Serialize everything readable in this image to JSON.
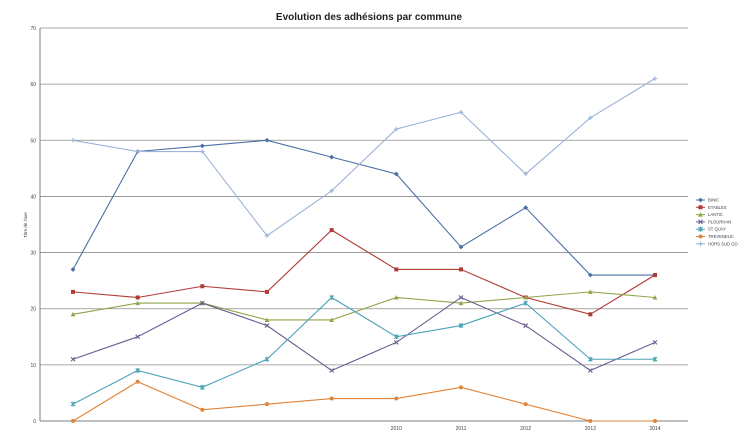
{
  "chart_data": {
    "type": "line",
    "title": "Evolution des adhésions par commune",
    "xlabel": "",
    "ylabel": "Titre de l'axe",
    "ylim": [
      0,
      70
    ],
    "yticks": [
      "0",
      "10",
      "20",
      "30",
      "40",
      "50",
      "60",
      "70"
    ],
    "categories": [
      "",
      "",
      "",
      "",
      "",
      "2010",
      "2011",
      "2012",
      "2013",
      "2014"
    ],
    "grid": true,
    "legend_position": "right",
    "series": [
      {
        "name": "BINIC",
        "color": "#4a6fa5",
        "marker": "diamond",
        "values": [
          27,
          48,
          49,
          50,
          47,
          44,
          31,
          38,
          26,
          26
        ]
      },
      {
        "name": "ETABLES",
        "color": "#b03a35",
        "marker": "square",
        "values": [
          23,
          22,
          24,
          23,
          34,
          27,
          27,
          22,
          19,
          26
        ]
      },
      {
        "name": "LANTIC",
        "color": "#8ea54b",
        "marker": "triangle",
        "values": [
          19,
          21,
          21,
          18,
          18,
          22,
          21,
          22,
          23,
          22
        ]
      },
      {
        "name": "PLOURHAN",
        "color": "#6f5b91",
        "marker": "x",
        "values": [
          11,
          15,
          21,
          17,
          9,
          14,
          22,
          17,
          9,
          14
        ]
      },
      {
        "name": "ST QUAY",
        "color": "#4ba3b8",
        "marker": "star",
        "values": [
          3,
          9,
          6,
          11,
          22,
          15,
          17,
          21,
          11,
          11
        ]
      },
      {
        "name": "TREVENEUC",
        "color": "#e0843a",
        "marker": "circle",
        "values": [
          0,
          7,
          2,
          3,
          4,
          4,
          6,
          3,
          0,
          0
        ]
      },
      {
        "name": "HORS SUD GO",
        "color": "#9db3d9",
        "marker": "plus",
        "values": [
          50,
          48,
          48,
          33,
          41,
          52,
          55,
          44,
          54,
          61
        ]
      }
    ]
  }
}
